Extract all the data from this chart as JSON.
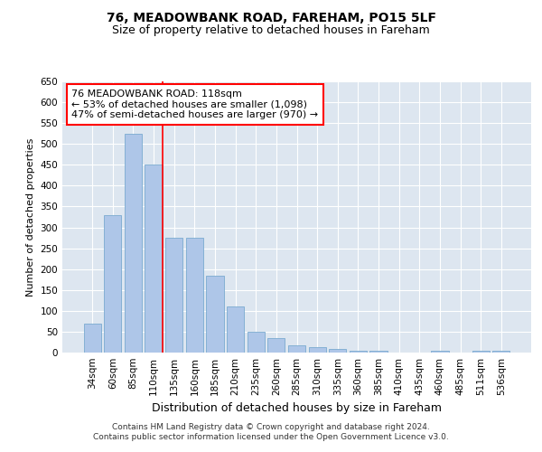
{
  "title1": "76, MEADOWBANK ROAD, FAREHAM, PO15 5LF",
  "title2": "Size of property relative to detached houses in Fareham",
  "xlabel": "Distribution of detached houses by size in Fareham",
  "ylabel": "Number of detached properties",
  "categories": [
    "34sqm",
    "60sqm",
    "85sqm",
    "110sqm",
    "135sqm",
    "160sqm",
    "185sqm",
    "210sqm",
    "235sqm",
    "260sqm",
    "285sqm",
    "310sqm",
    "335sqm",
    "360sqm",
    "385sqm",
    "410sqm",
    "435sqm",
    "460sqm",
    "485sqm",
    "511sqm",
    "536sqm"
  ],
  "values": [
    70,
    330,
    525,
    450,
    275,
    275,
    185,
    110,
    50,
    35,
    18,
    12,
    8,
    5,
    4,
    0,
    0,
    4,
    0,
    4,
    4
  ],
  "bar_color": "#aec6e8",
  "bar_edge_color": "#7aaad0",
  "background_color": "#dde6f0",
  "annotation_text": "76 MEADOWBANK ROAD: 118sqm\n← 53% of detached houses are smaller (1,098)\n47% of semi-detached houses are larger (970) →",
  "ylim": [
    0,
    650
  ],
  "yticks": [
    0,
    50,
    100,
    150,
    200,
    250,
    300,
    350,
    400,
    450,
    500,
    550,
    600,
    650
  ],
  "footer1": "Contains HM Land Registry data © Crown copyright and database right 2024.",
  "footer2": "Contains public sector information licensed under the Open Government Licence v3.0.",
  "title1_fontsize": 10,
  "title2_fontsize": 9,
  "xlabel_fontsize": 9,
  "ylabel_fontsize": 8,
  "tick_fontsize": 7.5,
  "annotation_fontsize": 8,
  "footer_fontsize": 6.5
}
